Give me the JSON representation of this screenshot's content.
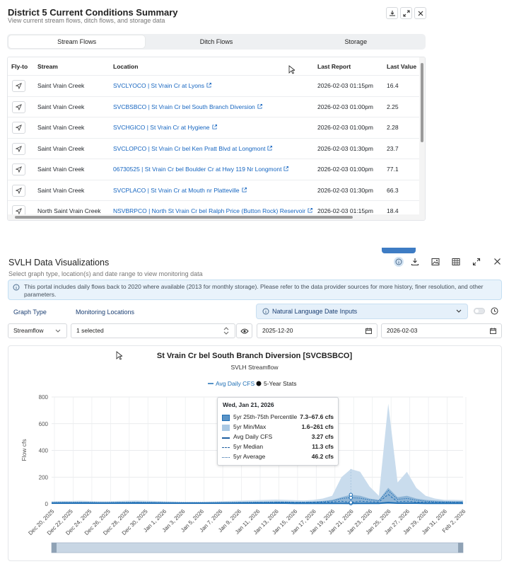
{
  "summary": {
    "title": "District 5 Current Conditions Summary",
    "subtitle": "View current stream flows, ditch flows, and storage data",
    "tabs": [
      "Stream Flows",
      "Ditch Flows",
      "Storage"
    ],
    "active_tab": "Stream Flows",
    "columns": [
      "Fly-to",
      "Stream",
      "Location",
      "Last Report",
      "Last Value"
    ],
    "rows": [
      {
        "stream": "Saint Vrain Creek",
        "location": "SVCLYOCO | St Vrain Cr at Lyons",
        "report": "2026-02-03 01:15pm",
        "value": "16.4"
      },
      {
        "stream": "Saint Vrain Creek",
        "location": "SVCBSBCO | St Vrain Cr bel South Branch Diversion",
        "report": "2026-02-03 01:00pm",
        "value": "2.25"
      },
      {
        "stream": "Saint Vrain Creek",
        "location": "SVCHGICO | St Vrain Cr at Hygiene",
        "report": "2026-02-03 01:00pm",
        "value": "2.28"
      },
      {
        "stream": "Saint Vrain Creek",
        "location": "SVCLOPCO | St Vrain Cr bel Ken Pratt Blvd at Longmont",
        "report": "2026-02-03 01:30pm",
        "value": "23.7"
      },
      {
        "stream": "Saint Vrain Creek",
        "location": "06730525 | St Vrain Cr bel Boulder Cr at Hwy 119 Nr Longmont",
        "report": "2026-02-03 01:00pm",
        "value": "77.1"
      },
      {
        "stream": "Saint Vrain Creek",
        "location": "SVCPLACO | St Vrain Cr at Mouth nr Platteville",
        "report": "2026-02-03 01:30pm",
        "value": "66.3"
      },
      {
        "stream": "North Saint Vrain Creek",
        "location": "NSVBRPCO | North St Vrain Cr bel Ralph Price (Button Rock) Reservoir",
        "report": "2026-02-03 01:15pm",
        "value": "18.4"
      }
    ]
  },
  "viz": {
    "title": "SVLH Data Visualizations",
    "subtitle": "Select graph type, location(s) and date range to view monitoring data",
    "info": "This portal includes daily flows back to 2020 where available (2013 for monthly storage). Please refer to the data provider sources for more history, finer resolution, and other parameters.",
    "graph_type_label": "Graph Type",
    "locations_label": "Monitoring Locations",
    "nlp_label": "Natural Language Date Inputs",
    "graph_type_value": "Streamflow",
    "locations_value": "1 selected",
    "start_date": "2025-12-20",
    "end_date": "2026-02-03"
  },
  "chart_data": {
    "type": "line",
    "title": "St Vrain Cr bel South Branch Diversion [SVCBSBCO]",
    "subtitle": "SVLH Streamflow",
    "ylabel": "Flow cfs",
    "xlabel": "",
    "ylim": [
      0,
      800
    ],
    "yticks": [
      0,
      200,
      400,
      600,
      800
    ],
    "x_tick_labels": [
      "Dec 20, 2025",
      "Dec 22, 2025",
      "Dec 24, 2025",
      "Dec 26, 2025",
      "Dec 28, 2025",
      "Dec 30, 2025",
      "Jan 1, 2026",
      "Jan 3, 2026",
      "Jan 5, 2026",
      "Jan 7, 2026",
      "Jan 9, 2026",
      "Jan 11, 2026",
      "Jan 13, 2026",
      "Jan 15, 2026",
      "Jan 17, 2026",
      "Jan 19, 2026",
      "Jan 21, 2026",
      "Jan 23, 2026",
      "Jan 25, 2026",
      "Jan 27, 2026",
      "Jan 29, 2026",
      "Jan 31, 2026",
      "Feb 2, 2026"
    ],
    "legend": [
      "Avg Daily CFS",
      "5-Year Stats"
    ],
    "grid": true,
    "max_envelope": [
      20,
      22,
      22,
      24,
      22,
      20,
      20,
      22,
      24,
      26,
      24,
      22,
      20,
      18,
      16,
      16,
      16,
      18,
      20,
      22,
      24,
      26,
      28,
      30,
      32,
      30,
      28,
      26,
      30,
      40,
      60,
      200,
      260,
      240,
      130,
      60,
      750,
      160,
      240,
      120,
      60,
      40,
      30,
      30,
      28
    ],
    "pct75": [
      12,
      13,
      13,
      14,
      13,
      12,
      12,
      13,
      14,
      15,
      14,
      13,
      12,
      11,
      10,
      10,
      10,
      11,
      12,
      13,
      14,
      15,
      16,
      17,
      18,
      18,
      16,
      16,
      18,
      22,
      30,
      50,
      68,
      60,
      40,
      30,
      120,
      50,
      60,
      40,
      30,
      25,
      22,
      20,
      20
    ],
    "median": [
      8,
      9,
      9,
      9,
      9,
      8,
      8,
      9,
      9,
      10,
      9,
      9,
      8,
      8,
      7,
      7,
      7,
      7,
      8,
      8,
      9,
      9,
      10,
      10,
      11,
      11,
      10,
      10,
      11,
      12,
      14,
      20,
      11,
      20,
      16,
      14,
      70,
      16,
      20,
      14,
      12,
      11,
      10,
      10,
      10
    ],
    "average": [
      10,
      11,
      11,
      11,
      11,
      10,
      10,
      11,
      11,
      12,
      11,
      11,
      10,
      10,
      9,
      9,
      9,
      9,
      10,
      10,
      11,
      11,
      12,
      12,
      13,
      13,
      12,
      12,
      13,
      16,
      22,
      40,
      46,
      42,
      30,
      24,
      100,
      34,
      40,
      28,
      20,
      16,
      14,
      14,
      14
    ],
    "avg_daily": [
      5,
      5,
      5,
      5,
      5,
      5,
      5,
      5,
      5,
      5,
      5,
      5,
      5,
      5,
      5,
      5,
      5,
      5,
      5,
      5,
      5,
      5,
      5,
      5,
      5,
      5,
      4,
      4,
      4,
      4,
      4,
      4,
      3.27,
      4,
      4,
      4,
      10,
      5,
      5,
      5,
      4,
      4,
      4,
      4,
      4
    ],
    "tooltip": {
      "date": "Wed, Jan 21, 2026",
      "rows": [
        {
          "name": "5yr 25th-75th Percentile",
          "value": "7.3–67.6 cfs"
        },
        {
          "name": "5yr Min/Max",
          "value": "1.6–261 cfs"
        },
        {
          "name": "Avg Daily CFS",
          "value": "3.27 cfs"
        },
        {
          "name": "5yr Median",
          "value": "11.3 cfs"
        },
        {
          "name": "5yr Average",
          "value": "46.2 cfs"
        }
      ]
    },
    "colors": {
      "primary": "#1f6fb5",
      "band_light": "#c9dced",
      "band_dark": "#8fb5d6"
    }
  }
}
